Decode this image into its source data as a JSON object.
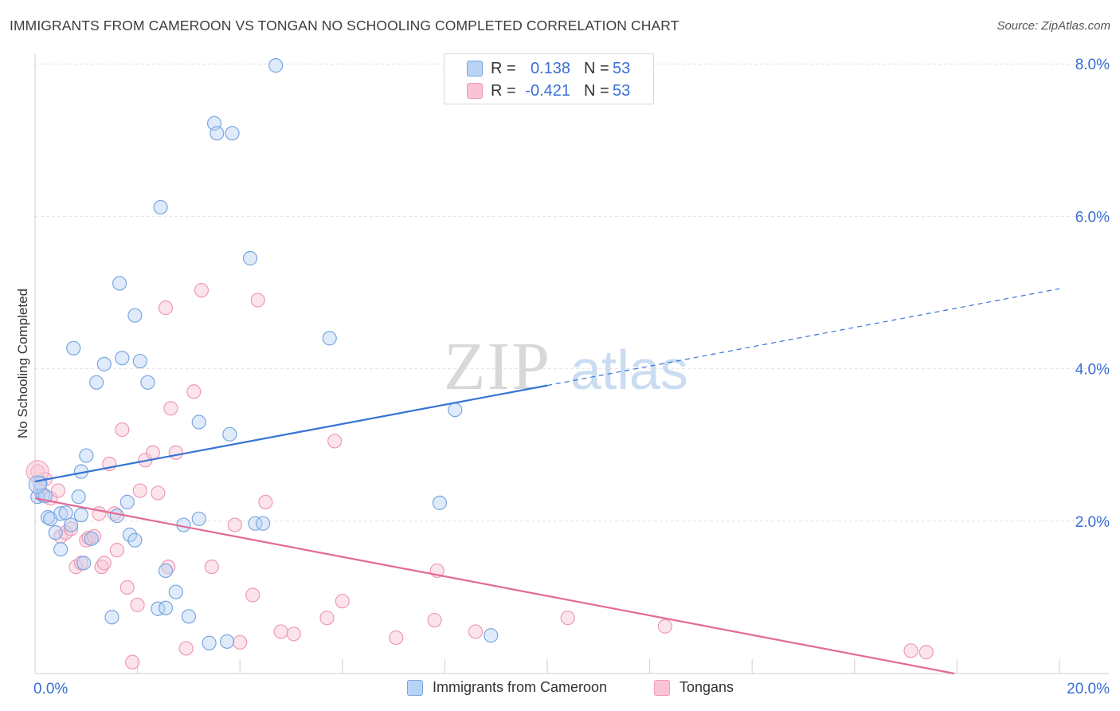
{
  "title": "IMMIGRANTS FROM CAMEROON VS TONGAN NO SCHOOLING COMPLETED CORRELATION CHART",
  "source": "Source: ZipAtlas.com",
  "watermark": {
    "zip": "ZIP",
    "atlas": "atlas"
  },
  "legend_stats": [
    {
      "r_label": "R =",
      "r_value": "0.138",
      "n_label": "N =",
      "n_value": "53"
    },
    {
      "r_label": "R =",
      "r_value": "-0.421",
      "n_label": "N =",
      "n_value": "53"
    }
  ],
  "colors": {
    "blue_fill": "#b9d3f5",
    "blue_stroke": "#7aa6e0",
    "blue_line": "#3473d6",
    "pink_fill": "#f8c4d4",
    "pink_stroke": "#ee9ab4",
    "pink_line": "#e46a96",
    "axis_text": "#3a6fd8",
    "grid": "#e3e3e3"
  },
  "chart_data": {
    "type": "scatter",
    "title": "IMMIGRANTS FROM CAMEROON VS TONGAN NO SCHOOLING COMPLETED CORRELATION CHART",
    "xlabel": "",
    "ylabel": "No Schooling Completed",
    "x_unit": "%",
    "y_unit": "%",
    "xlim": [
      0,
      20
    ],
    "ylim": [
      0,
      8.2
    ],
    "x_tick_labels": [
      "0.0%",
      "20.0%"
    ],
    "y_ticks": [
      2,
      4,
      6,
      8
    ],
    "y_tick_labels": [
      "2.0%",
      "4.0%",
      "6.0%",
      "8.0%"
    ],
    "grid": true,
    "legend_position": "bottom",
    "series": [
      {
        "name": "Immigrants from Cameroon",
        "color": "#b9d3f5",
        "r": 0.138,
        "n": 53,
        "trend": {
          "x": [
            0,
            10.0
          ],
          "y": [
            2.52,
            3.78
          ],
          "dashed_extension": {
            "x": [
              10.0,
              20.0
            ],
            "y": [
              3.78,
              5.05
            ]
          }
        },
        "points": [
          [
            0.05,
            2.32
          ],
          [
            0.1,
            2.5
          ],
          [
            0.15,
            2.34
          ],
          [
            0.2,
            2.33
          ],
          [
            0.25,
            2.05
          ],
          [
            0.3,
            2.03
          ],
          [
            0.4,
            1.85
          ],
          [
            0.5,
            1.63
          ],
          [
            0.5,
            2.1
          ],
          [
            0.6,
            2.11
          ],
          [
            0.7,
            1.95
          ],
          [
            0.85,
            2.32
          ],
          [
            0.9,
            2.08
          ],
          [
            0.95,
            1.45
          ],
          [
            1.0,
            2.86
          ],
          [
            1.1,
            1.77
          ],
          [
            0.9,
            2.65
          ],
          [
            0.75,
            4.27
          ],
          [
            1.2,
            3.82
          ],
          [
            1.35,
            4.06
          ],
          [
            1.5,
            0.74
          ],
          [
            1.6,
            2.07
          ],
          [
            1.65,
            5.12
          ],
          [
            1.7,
            4.14
          ],
          [
            1.8,
            2.25
          ],
          [
            1.85,
            1.82
          ],
          [
            1.95,
            1.75
          ],
          [
            1.95,
            4.7
          ],
          [
            2.05,
            4.1
          ],
          [
            2.2,
            3.82
          ],
          [
            2.45,
            6.12
          ],
          [
            2.4,
            0.85
          ],
          [
            2.55,
            0.86
          ],
          [
            2.55,
            1.35
          ],
          [
            2.75,
            1.07
          ],
          [
            2.9,
            1.95
          ],
          [
            3.2,
            3.3
          ],
          [
            3.2,
            2.03
          ],
          [
            3.4,
            0.4
          ],
          [
            3.5,
            7.22
          ],
          [
            3.55,
            7.09
          ],
          [
            3.75,
            0.42
          ],
          [
            3.8,
            3.14
          ],
          [
            3.85,
            7.09
          ],
          [
            4.2,
            5.45
          ],
          [
            4.3,
            1.97
          ],
          [
            4.45,
            1.97
          ],
          [
            4.7,
            7.98
          ],
          [
            5.75,
            4.4
          ],
          [
            7.9,
            2.24
          ],
          [
            8.2,
            3.46
          ],
          [
            8.9,
            0.5
          ],
          [
            3.0,
            0.75
          ]
        ]
      },
      {
        "name": "Tongans",
        "color": "#f8c4d4",
        "r": -0.421,
        "n": 53,
        "trend": {
          "x": [
            0,
            17.95
          ],
          "y": [
            2.3,
            0.0
          ]
        },
        "points": [
          [
            0.05,
            2.65
          ],
          [
            0.1,
            2.4
          ],
          [
            0.2,
            2.55
          ],
          [
            0.3,
            2.3
          ],
          [
            0.45,
            2.4
          ],
          [
            0.5,
            1.8
          ],
          [
            0.6,
            1.85
          ],
          [
            0.7,
            1.9
          ],
          [
            0.8,
            1.4
          ],
          [
            0.9,
            1.45
          ],
          [
            1.0,
            1.75
          ],
          [
            1.05,
            1.78
          ],
          [
            1.15,
            1.8
          ],
          [
            1.25,
            2.1
          ],
          [
            1.3,
            1.4
          ],
          [
            1.35,
            1.45
          ],
          [
            1.45,
            2.75
          ],
          [
            1.55,
            2.1
          ],
          [
            1.6,
            1.62
          ],
          [
            1.7,
            3.2
          ],
          [
            1.8,
            1.13
          ],
          [
            1.9,
            0.15
          ],
          [
            2.0,
            0.9
          ],
          [
            2.05,
            2.4
          ],
          [
            2.15,
            2.8
          ],
          [
            2.3,
            2.9
          ],
          [
            2.4,
            2.37
          ],
          [
            2.55,
            4.8
          ],
          [
            2.6,
            1.4
          ],
          [
            2.65,
            3.48
          ],
          [
            2.75,
            2.9
          ],
          [
            2.95,
            0.33
          ],
          [
            3.1,
            3.7
          ],
          [
            3.25,
            5.03
          ],
          [
            3.45,
            1.4
          ],
          [
            3.9,
            1.95
          ],
          [
            4.0,
            0.41
          ],
          [
            4.25,
            1.03
          ],
          [
            4.35,
            4.9
          ],
          [
            4.5,
            2.25
          ],
          [
            4.8,
            0.55
          ],
          [
            5.05,
            0.52
          ],
          [
            5.7,
            0.73
          ],
          [
            5.85,
            3.05
          ],
          [
            6.0,
            0.95
          ],
          [
            7.05,
            0.47
          ],
          [
            7.8,
            0.7
          ],
          [
            7.85,
            1.35
          ],
          [
            8.6,
            0.55
          ],
          [
            10.4,
            0.73
          ],
          [
            12.3,
            0.62
          ],
          [
            17.1,
            0.3
          ],
          [
            17.4,
            0.28
          ]
        ]
      }
    ]
  }
}
